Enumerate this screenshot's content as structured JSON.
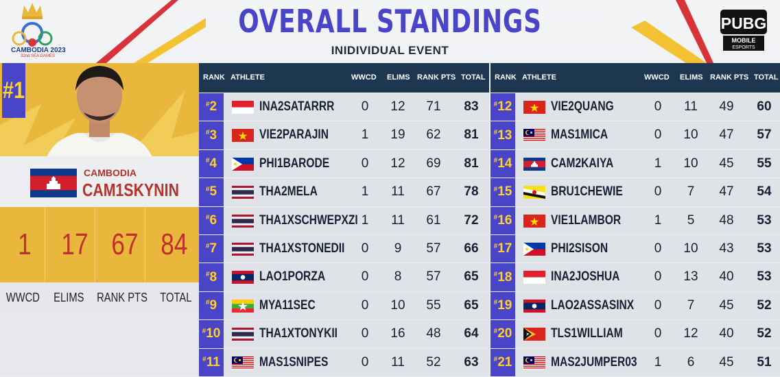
{
  "header": {
    "title": "OVERALL STANDINGS",
    "subtitle": "INIDIVIDUAL EVENT",
    "sea_games_text": "CAMBODIA 2023",
    "sea_games_sub": "32nd SEA GAMES",
    "pubg_logo": "PUBG",
    "pubg_sub1": "MOBILE",
    "pubg_sub2": "ESPORTS"
  },
  "winner": {
    "rank": "#1",
    "country": "CAMBODIA",
    "player": "CAM1SKYNIN",
    "flag": "KH",
    "stats": [
      {
        "label": "WWCD",
        "value": "1"
      },
      {
        "label": "ELIMS",
        "value": "17"
      },
      {
        "label": "RANK PTS",
        "value": "67"
      },
      {
        "label": "TOTAL",
        "value": "84"
      }
    ]
  },
  "columns": {
    "rank": "RANK",
    "athlete": "ATHLETE",
    "wwcd": "WWCD",
    "elims": "ELIMS",
    "rank_pts": "RANK PTS",
    "total": "TOTAL"
  },
  "left_table": [
    {
      "rank": "2",
      "flag": "ID",
      "athlete": "INA2SATARRR",
      "wwcd": "0",
      "elims": "12",
      "rank_pts": "71",
      "total": "83"
    },
    {
      "rank": "3",
      "flag": "VN",
      "athlete": "VIE2PARAJIN",
      "wwcd": "1",
      "elims": "19",
      "rank_pts": "62",
      "total": "81"
    },
    {
      "rank": "4",
      "flag": "PH",
      "athlete": "PHI1BARODE",
      "wwcd": "0",
      "elims": "12",
      "rank_pts": "69",
      "total": "81"
    },
    {
      "rank": "5",
      "flag": "TH",
      "athlete": "THA2MELA",
      "wwcd": "1",
      "elims": "11",
      "rank_pts": "67",
      "total": "78"
    },
    {
      "rank": "6",
      "flag": "TH",
      "athlete": "THA1XSCHWEPXZI",
      "wwcd": "1",
      "elims": "11",
      "rank_pts": "61",
      "total": "72"
    },
    {
      "rank": "7",
      "flag": "TH",
      "athlete": "THA1XSTONEDII",
      "wwcd": "0",
      "elims": "9",
      "rank_pts": "57",
      "total": "66"
    },
    {
      "rank": "8",
      "flag": "LA",
      "athlete": "LAO1PORZA",
      "wwcd": "0",
      "elims": "8",
      "rank_pts": "57",
      "total": "65"
    },
    {
      "rank": "9",
      "flag": "MM",
      "athlete": "MYA11SEC",
      "wwcd": "0",
      "elims": "10",
      "rank_pts": "55",
      "total": "65"
    },
    {
      "rank": "10",
      "flag": "TH",
      "athlete": "THA1XTONYKII",
      "wwcd": "0",
      "elims": "16",
      "rank_pts": "48",
      "total": "64"
    },
    {
      "rank": "11",
      "flag": "MY",
      "athlete": "MAS1SNIPES",
      "wwcd": "0",
      "elims": "11",
      "rank_pts": "52",
      "total": "63"
    }
  ],
  "right_table": [
    {
      "rank": "12",
      "flag": "VN",
      "athlete": "VIE2QUANG",
      "wwcd": "0",
      "elims": "11",
      "rank_pts": "49",
      "total": "60"
    },
    {
      "rank": "13",
      "flag": "MY",
      "athlete": "MAS1MICA",
      "wwcd": "0",
      "elims": "10",
      "rank_pts": "47",
      "total": "57"
    },
    {
      "rank": "14",
      "flag": "KH",
      "athlete": "CAM2KAIYA",
      "wwcd": "1",
      "elims": "10",
      "rank_pts": "45",
      "total": "55"
    },
    {
      "rank": "15",
      "flag": "BN",
      "athlete": "BRU1CHEWIE",
      "wwcd": "0",
      "elims": "7",
      "rank_pts": "47",
      "total": "54"
    },
    {
      "rank": "16",
      "flag": "VN",
      "athlete": "VIE1LAMBOR",
      "wwcd": "1",
      "elims": "5",
      "rank_pts": "48",
      "total": "53"
    },
    {
      "rank": "17",
      "flag": "PH",
      "athlete": "PHI2SISON",
      "wwcd": "0",
      "elims": "10",
      "rank_pts": "43",
      "total": "53"
    },
    {
      "rank": "18",
      "flag": "ID",
      "athlete": "INA2JOSHUA",
      "wwcd": "0",
      "elims": "13",
      "rank_pts": "40",
      "total": "53"
    },
    {
      "rank": "19",
      "flag": "LA",
      "athlete": "LAO2ASSASINX",
      "wwcd": "0",
      "elims": "7",
      "rank_pts": "45",
      "total": "52"
    },
    {
      "rank": "20",
      "flag": "TL",
      "athlete": "TLS1WILLIAM",
      "wwcd": "0",
      "elims": "12",
      "rank_pts": "40",
      "total": "52"
    },
    {
      "rank": "21",
      "flag": "MY",
      "athlete": "MAS2JUMPER03",
      "wwcd": "1",
      "elims": "6",
      "rank_pts": "45",
      "total": "51"
    }
  ],
  "colors": {
    "accent": "#4a44c9",
    "header": "#1d3750",
    "gold": "#e8b73b",
    "red": "#c0302c"
  }
}
